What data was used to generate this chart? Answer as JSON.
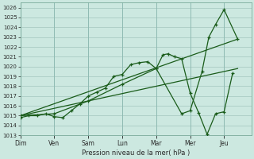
{
  "bg_color": "#cce8e0",
  "grid_color": "#aaccC4",
  "line_color": "#1a5c1a",
  "marker_color": "#1a5c1a",
  "xlabel": "Pression niveau de la mer( hPa )",
  "ylim": [
    1013,
    1026.5
  ],
  "yticks": [
    1013,
    1014,
    1015,
    1016,
    1017,
    1018,
    1019,
    1020,
    1021,
    1022,
    1023,
    1024,
    1025,
    1026
  ],
  "day_labels": [
    "Dim",
    "Ven",
    "Sam",
    "Lun",
    "Mar",
    "Mer",
    "Jeu"
  ],
  "day_positions": [
    0,
    1,
    2,
    3,
    4,
    5,
    6
  ],
  "xlim": [
    0,
    6.8
  ],
  "lines": [
    {
      "x": [
        0.0,
        0.25,
        0.5,
        0.75,
        1.0,
        1.25,
        1.5,
        1.75,
        2.0,
        2.25,
        2.5,
        2.75,
        3.0,
        3.25,
        3.5,
        3.75,
        4.0,
        4.2,
        4.35,
        4.55,
        4.75,
        5.0,
        5.25,
        5.5,
        5.75,
        6.0,
        6.25
      ],
      "y": [
        1014.8,
        1015.0,
        1015.0,
        1015.2,
        1014.9,
        1014.8,
        1015.5,
        1016.2,
        1017.0,
        1017.4,
        1017.8,
        1019.0,
        1019.2,
        1020.2,
        1020.4,
        1020.5,
        1019.8,
        1021.2,
        1021.3,
        1021.0,
        1020.8,
        1017.3,
        1015.3,
        1013.1,
        1015.2,
        1015.4,
        1019.3
      ],
      "has_markers": true
    },
    {
      "x": [
        0.0,
        1.0,
        2.0,
        3.0,
        4.0,
        4.75,
        5.0,
        5.35,
        5.55,
        5.75,
        6.0,
        6.4
      ],
      "y": [
        1015.0,
        1015.2,
        1016.5,
        1018.2,
        1019.8,
        1015.2,
        1015.5,
        1019.5,
        1023.0,
        1024.3,
        1025.8,
        1022.8
      ],
      "has_markers": true
    },
    {
      "x": [
        0.0,
        6.4
      ],
      "y": [
        1015.0,
        1019.8
      ],
      "has_markers": false
    },
    {
      "x": [
        0.0,
        6.4
      ],
      "y": [
        1015.0,
        1022.8
      ],
      "has_markers": false
    }
  ]
}
